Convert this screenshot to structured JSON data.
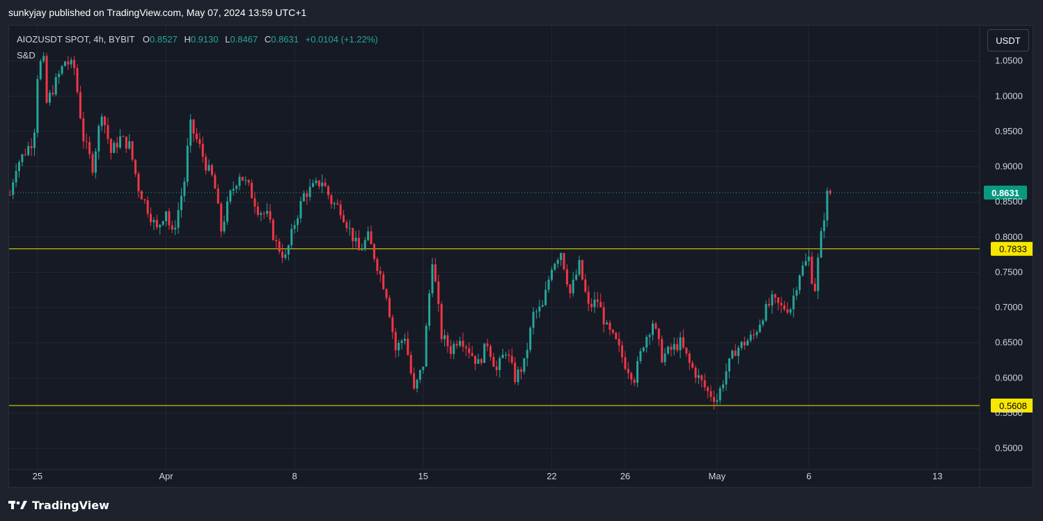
{
  "header": {
    "publisher_text": "sunkyjay published on TradingView.com, May 07, 2024 13:59 UTC+1"
  },
  "legend": {
    "symbol_line": "AIOZUSDT SPOT, 4h, BYBIT",
    "o_label": "O",
    "o_value": "0.8527",
    "h_label": "H",
    "h_value": "0.9130",
    "l_label": "L",
    "l_value": "0.8467",
    "c_label": "C",
    "c_value": "0.8631",
    "change": "+0.0104 (+1.22%)",
    "indicator": "S&D"
  },
  "currency_button": "USDT",
  "footer": {
    "brand": "TradingView"
  },
  "colors": {
    "up": "#26a69a",
    "down": "#f23645",
    "level": "#f7e600",
    "price_label_bg": "#089981",
    "supply": "#f7a600",
    "demand": "#e040fb"
  },
  "chart_data": {
    "type": "candlestick",
    "symbol": "AIOZUSDT",
    "timeframe": "4h",
    "exchange": "BYBIT",
    "y_axis_ticks": [
      "0.5000",
      "0.5500",
      "0.6000",
      "0.6500",
      "0.7000",
      "0.7500",
      "0.8000",
      "0.8500",
      "0.9000",
      "0.9500",
      "1.0000",
      "1.0500"
    ],
    "y_range": [
      0.47,
      1.1
    ],
    "x_axis_ticks": [
      {
        "label": "25",
        "t": 0
      },
      {
        "label": "Apr",
        "t": 7
      },
      {
        "label": "8",
        "t": 14
      },
      {
        "label": "15",
        "t": 21
      },
      {
        "label": "22",
        "t": 28
      },
      {
        "label": "26",
        "t": 32
      },
      {
        "label": "May",
        "t": 37
      },
      {
        "label": "6",
        "t": 42
      },
      {
        "label": "13",
        "t": 49
      }
    ],
    "x_range": [
      -1.55,
      51.3
    ],
    "horizontal_levels": [
      {
        "value": 0.7833,
        "label": "0.7833"
      },
      {
        "value": 0.5608,
        "label": "0.5608"
      }
    ],
    "last_price": {
      "value": 0.8631,
      "label": "0.8631"
    },
    "path_points": [
      [
        -1.5,
        0.86
      ],
      [
        -1.2,
        0.9
      ],
      [
        -0.7,
        0.92
      ],
      [
        -0.2,
        0.94
      ],
      [
        0,
        1.03
      ],
      [
        0.3,
        1.06
      ],
      [
        0.5,
        0.99
      ],
      [
        1,
        1.02
      ],
      [
        1.5,
        1.05
      ],
      [
        2,
        1.04
      ],
      [
        2.5,
        0.94
      ],
      [
        3,
        0.9
      ],
      [
        3.5,
        0.98
      ],
      [
        4,
        0.92
      ],
      [
        4.5,
        0.94
      ],
      [
        5,
        0.93
      ],
      [
        5.5,
        0.87
      ],
      [
        6,
        0.84
      ],
      [
        6.5,
        0.81
      ],
      [
        7,
        0.84
      ],
      [
        7.3,
        0.8
      ],
      [
        7.6,
        0.83
      ],
      [
        8,
        0.88
      ],
      [
        8.3,
        0.96
      ],
      [
        8.8,
        0.93
      ],
      [
        9.2,
        0.9
      ],
      [
        9.6,
        0.88
      ],
      [
        10,
        0.81
      ],
      [
        10.5,
        0.86
      ],
      [
        11,
        0.89
      ],
      [
        11.5,
        0.87
      ],
      [
        12,
        0.84
      ],
      [
        12.5,
        0.83
      ],
      [
        13,
        0.79
      ],
      [
        13.5,
        0.77
      ],
      [
        14,
        0.82
      ],
      [
        14.5,
        0.86
      ],
      [
        15,
        0.87
      ],
      [
        15.5,
        0.88
      ],
      [
        16,
        0.85
      ],
      [
        16.5,
        0.84
      ],
      [
        17,
        0.81
      ],
      [
        17.5,
        0.78
      ],
      [
        18,
        0.8
      ],
      [
        18.5,
        0.76
      ],
      [
        19,
        0.72
      ],
      [
        19.5,
        0.64
      ],
      [
        20,
        0.66
      ],
      [
        20.5,
        0.58
      ],
      [
        21,
        0.62
      ],
      [
        21.5,
        0.77
      ],
      [
        22,
        0.66
      ],
      [
        22.5,
        0.64
      ],
      [
        23,
        0.66
      ],
      [
        23.5,
        0.64
      ],
      [
        24,
        0.62
      ],
      [
        24.5,
        0.65
      ],
      [
        25,
        0.61
      ],
      [
        25.5,
        0.64
      ],
      [
        26,
        0.6
      ],
      [
        26.5,
        0.62
      ],
      [
        27,
        0.69
      ],
      [
        27.5,
        0.7
      ],
      [
        28,
        0.76
      ],
      [
        28.5,
        0.78
      ],
      [
        29,
        0.72
      ],
      [
        29.5,
        0.76
      ],
      [
        30,
        0.7
      ],
      [
        30.5,
        0.71
      ],
      [
        31,
        0.67
      ],
      [
        31.5,
        0.65
      ],
      [
        32,
        0.62
      ],
      [
        32.5,
        0.6
      ],
      [
        33,
        0.65
      ],
      [
        33.5,
        0.68
      ],
      [
        34,
        0.63
      ],
      [
        34.5,
        0.64
      ],
      [
        35,
        0.65
      ],
      [
        35.5,
        0.62
      ],
      [
        36,
        0.6
      ],
      [
        36.5,
        0.58
      ],
      [
        37,
        0.57
      ],
      [
        37.5,
        0.61
      ],
      [
        38,
        0.64
      ],
      [
        38.5,
        0.65
      ],
      [
        39,
        0.66
      ],
      [
        39.5,
        0.69
      ],
      [
        40,
        0.71
      ],
      [
        40.5,
        0.7
      ],
      [
        41,
        0.7
      ],
      [
        41.5,
        0.75
      ],
      [
        42,
        0.77
      ],
      [
        42.3,
        0.72
      ],
      [
        42.6,
        0.79
      ],
      [
        43.0,
        0.86
      ],
      [
        43.2,
        0.8631
      ]
    ]
  }
}
